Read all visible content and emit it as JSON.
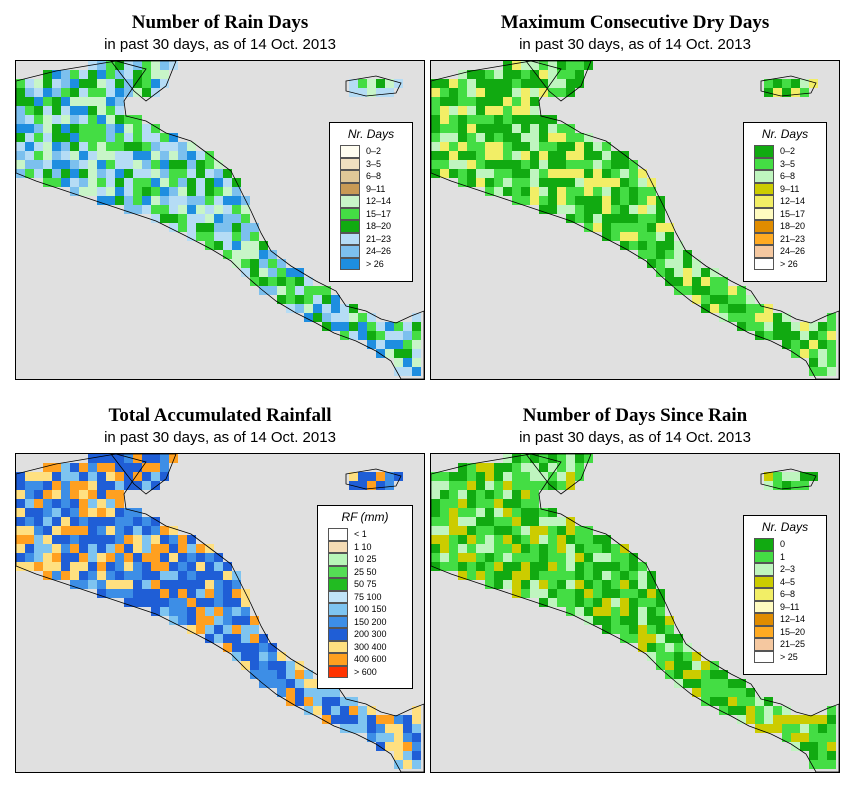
{
  "panels": [
    {
      "id": "rain-days",
      "title": "Number of Rain Days",
      "subtitle": "in past 30 days, as of  14 Oct. 2013",
      "legend": {
        "title": "Nr. Days",
        "items": [
          {
            "label": "0–2",
            "color": "#fffdf0"
          },
          {
            "label": "3–5",
            "color": "#f0e0c0"
          },
          {
            "label": "6–8",
            "color": "#e0c898"
          },
          {
            "label": "9–11",
            "color": "#c89a55"
          },
          {
            "label": "12–14",
            "color": "#c8f5c8"
          },
          {
            "label": "15–17",
            "color": "#44dd44"
          },
          {
            "label": "18–20",
            "color": "#11aa11"
          },
          {
            "label": "21–23",
            "color": "#b5dcf5"
          },
          {
            "label": "24–26",
            "color": "#7cc0ee"
          },
          {
            "label": "> 26",
            "color": "#1e8ee0"
          }
        ]
      }
    },
    {
      "id": "dry-days",
      "title": "Maximum Consecutive Dry Days",
      "subtitle": "in past 30 days, as of  14 Oct. 2013",
      "legend": {
        "title": "Nr. Days",
        "items": [
          {
            "label": "0–2",
            "color": "#11aa11"
          },
          {
            "label": "3–5",
            "color": "#44dd44"
          },
          {
            "label": "6–8",
            "color": "#bff5bf"
          },
          {
            "label": "9–11",
            "color": "#cccc00"
          },
          {
            "label": "12–14",
            "color": "#f2ee66"
          },
          {
            "label": "15–17",
            "color": "#fffbc0"
          },
          {
            "label": "18–20",
            "color": "#e08c00"
          },
          {
            "label": "21–23",
            "color": "#ffaa22"
          },
          {
            "label": "24–26",
            "color": "#f5c8a0"
          },
          {
            "label": "> 26",
            "color": "#ffffff"
          }
        ]
      }
    },
    {
      "id": "rainfall",
      "title": "Total Accumulated Rainfall",
      "subtitle": "in past 30 days, as of  14 Oct. 2013",
      "legend": {
        "title": "RF (mm)",
        "items": [
          {
            "label": "< 1",
            "color": "#ffffff"
          },
          {
            "label": "1  10",
            "color": "#f5dcb4"
          },
          {
            "label": "10  25",
            "color": "#b8f5b8"
          },
          {
            "label": "25  50",
            "color": "#55dd55"
          },
          {
            "label": "50  75",
            "color": "#22bb22"
          },
          {
            "label": "75  100",
            "color": "#c0e4f8"
          },
          {
            "label": "100  150",
            "color": "#7ec4f0"
          },
          {
            "label": "150  200",
            "color": "#3d8ee6"
          },
          {
            "label": "200  300",
            "color": "#1f5ed6"
          },
          {
            "label": "300  400",
            "color": "#ffe080"
          },
          {
            "label": "400  600",
            "color": "#ffa020"
          },
          {
            "label": "> 600",
            "color": "#ff3300"
          }
        ]
      }
    },
    {
      "id": "since-rain",
      "title": "Number of Days Since Rain",
      "subtitle": "in past 30 days, as of  14 Oct. 2013",
      "legend": {
        "title": "Nr. Days",
        "items": [
          {
            "label": "0",
            "color": "#11aa11"
          },
          {
            "label": "1",
            "color": "#44dd44"
          },
          {
            "label": "2–3",
            "color": "#bff5bf"
          },
          {
            "label": "4–5",
            "color": "#cccc00"
          },
          {
            "label": "6–8",
            "color": "#f2ee66"
          },
          {
            "label": "9–11",
            "color": "#fffbc0"
          },
          {
            "label": "12–14",
            "color": "#e08c00"
          },
          {
            "label": "15–20",
            "color": "#ffaa22"
          },
          {
            "label": "21–25",
            "color": "#f5c8a0"
          },
          {
            "label": "> 25",
            "color": "#ffffff"
          }
        ]
      }
    }
  ],
  "colors": {
    "ocean": "#e0e0e0",
    "border": "#000000"
  }
}
